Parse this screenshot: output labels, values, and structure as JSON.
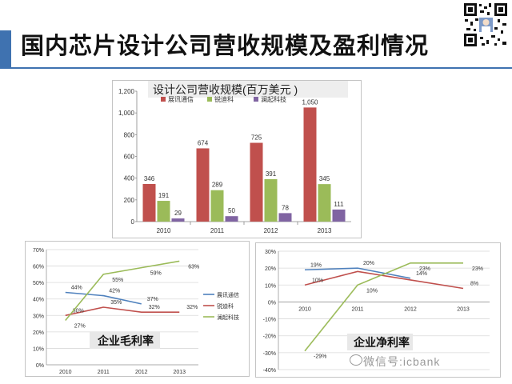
{
  "slide": {
    "title": "国内芯片设计公司营收规模及盈利情况",
    "watermark": "微信号:icbank"
  },
  "colors": {
    "accent": "#3f72b0",
    "spreadtrum": "#c0504d",
    "rdamicro": "#9bbb59",
    "ic_netcom": "#8064a2",
    "spreadtrum_line": "#4f81bd"
  },
  "chart_data": [
    {
      "id": "revenue",
      "type": "bar",
      "title": "设计公司营收规模(百万美元 )",
      "categories": [
        "2010",
        "2011",
        "2012",
        "2013"
      ],
      "series": [
        {
          "name": "展讯通信",
          "values": [
            346,
            674,
            725,
            1050
          ],
          "labels": [
            "346",
            "674",
            "725",
            "1,050"
          ]
        },
        {
          "name": "锐迪科",
          "values": [
            191,
            289,
            391,
            345
          ],
          "labels": [
            "191",
            "289",
            "391",
            "345"
          ]
        },
        {
          "name": "澜起科技",
          "values": [
            29,
            50,
            78,
            111
          ],
          "labels": [
            "29",
            "50",
            "78",
            "111"
          ]
        }
      ],
      "ylim": [
        0,
        1200
      ],
      "yticks": [
        "0",
        "200",
        "400",
        "600",
        "800",
        "1,000",
        "1,200"
      ],
      "legend": "top-left",
      "grid": false
    },
    {
      "id": "gross_margin",
      "type": "line",
      "title": "企业毛利率",
      "categories": [
        "2010",
        "2011",
        "2012",
        "2013"
      ],
      "series": [
        {
          "name": "展讯通信",
          "values": [
            44,
            42,
            37,
            null
          ],
          "labels": [
            "44%",
            "42%",
            "37%",
            ""
          ]
        },
        {
          "name": "锐迪科",
          "values": [
            30,
            35,
            32,
            32
          ],
          "labels": [
            "30%",
            "35%",
            "32%",
            "32%"
          ]
        },
        {
          "name": "澜起科技",
          "values": [
            27,
            55,
            59,
            63
          ],
          "labels": [
            "27%",
            "55%",
            "59%",
            "63%"
          ]
        }
      ],
      "ylim": [
        0,
        70
      ],
      "yticks": [
        "0%",
        "10%",
        "20%",
        "30%",
        "40%",
        "50%",
        "60%",
        "70%"
      ],
      "legend": "right",
      "grid": true
    },
    {
      "id": "net_margin",
      "type": "line",
      "title": "企业净利率",
      "categories": [
        "2010",
        "2011",
        "2012",
        "2013"
      ],
      "series": [
        {
          "name": "展讯通信",
          "values": [
            19,
            20,
            14,
            null
          ],
          "labels": [
            "19%",
            "20%",
            "14%",
            ""
          ]
        },
        {
          "name": "锐迪科",
          "values": [
            10,
            18,
            13,
            8
          ],
          "labels": [
            "10%",
            "",
            "",
            "8%"
          ]
        },
        {
          "name": "澜起科技",
          "values": [
            -29,
            10,
            23,
            23
          ],
          "labels": [
            "-29%",
            "10%",
            "23%",
            "23%"
          ]
        }
      ],
      "ylim": [
        -40,
        30
      ],
      "yticks": [
        "-40%",
        "-30%",
        "-20%",
        "-10%",
        "0%",
        "10%",
        "20%",
        "30%"
      ],
      "legend": "none",
      "grid": true
    }
  ]
}
